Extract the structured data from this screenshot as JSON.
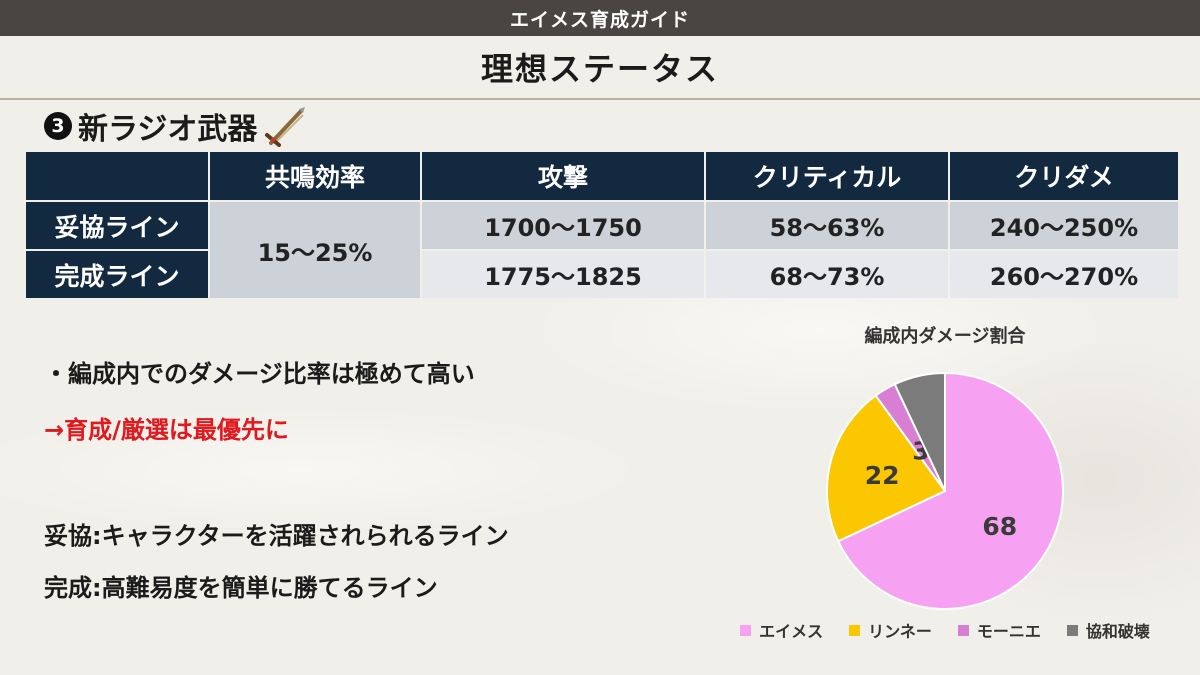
{
  "header": {
    "guide_title": "エイメス育成ガイド",
    "page_title": "理想ステータス"
  },
  "section": {
    "number": "3",
    "title": "新ラジオ武器",
    "weapon_icon": "sword-icon"
  },
  "stats_table": {
    "columns": [
      "共鳴効率",
      "攻撃",
      "クリティカル",
      "クリダメ"
    ],
    "rows": [
      {
        "label": "妥協ライン",
        "energy_regen": "15〜25%",
        "attack": "1700〜1750",
        "crit_rate": "58〜63%",
        "crit_dmg": "240〜250%"
      },
      {
        "label": "完成ライン",
        "attack": "1775〜1825",
        "crit_rate": "68〜73%",
        "crit_dmg": "260〜270%"
      }
    ]
  },
  "notes": {
    "bullet1": "・編成内でのダメージ比率は極めて高い",
    "bullet2": "→育成/厳選は最優先に",
    "def1": "妥協:キャラクターを活躍されられるライン",
    "def2": "完成:高難易度を簡単に勝てるライン"
  },
  "chart_data": {
    "type": "pie",
    "title": "編成内ダメージ割合",
    "labels": [
      "エイメス",
      "リンネー",
      "モーニエ",
      "協和破壊"
    ],
    "values": [
      68,
      22,
      3,
      7
    ],
    "data_labels": [
      "68",
      "22",
      "3",
      ""
    ],
    "colors": [
      "#f7a1f2",
      "#fbc700",
      "#d87fd3",
      "#7b7b7b"
    ],
    "legend_position": "bottom"
  }
}
